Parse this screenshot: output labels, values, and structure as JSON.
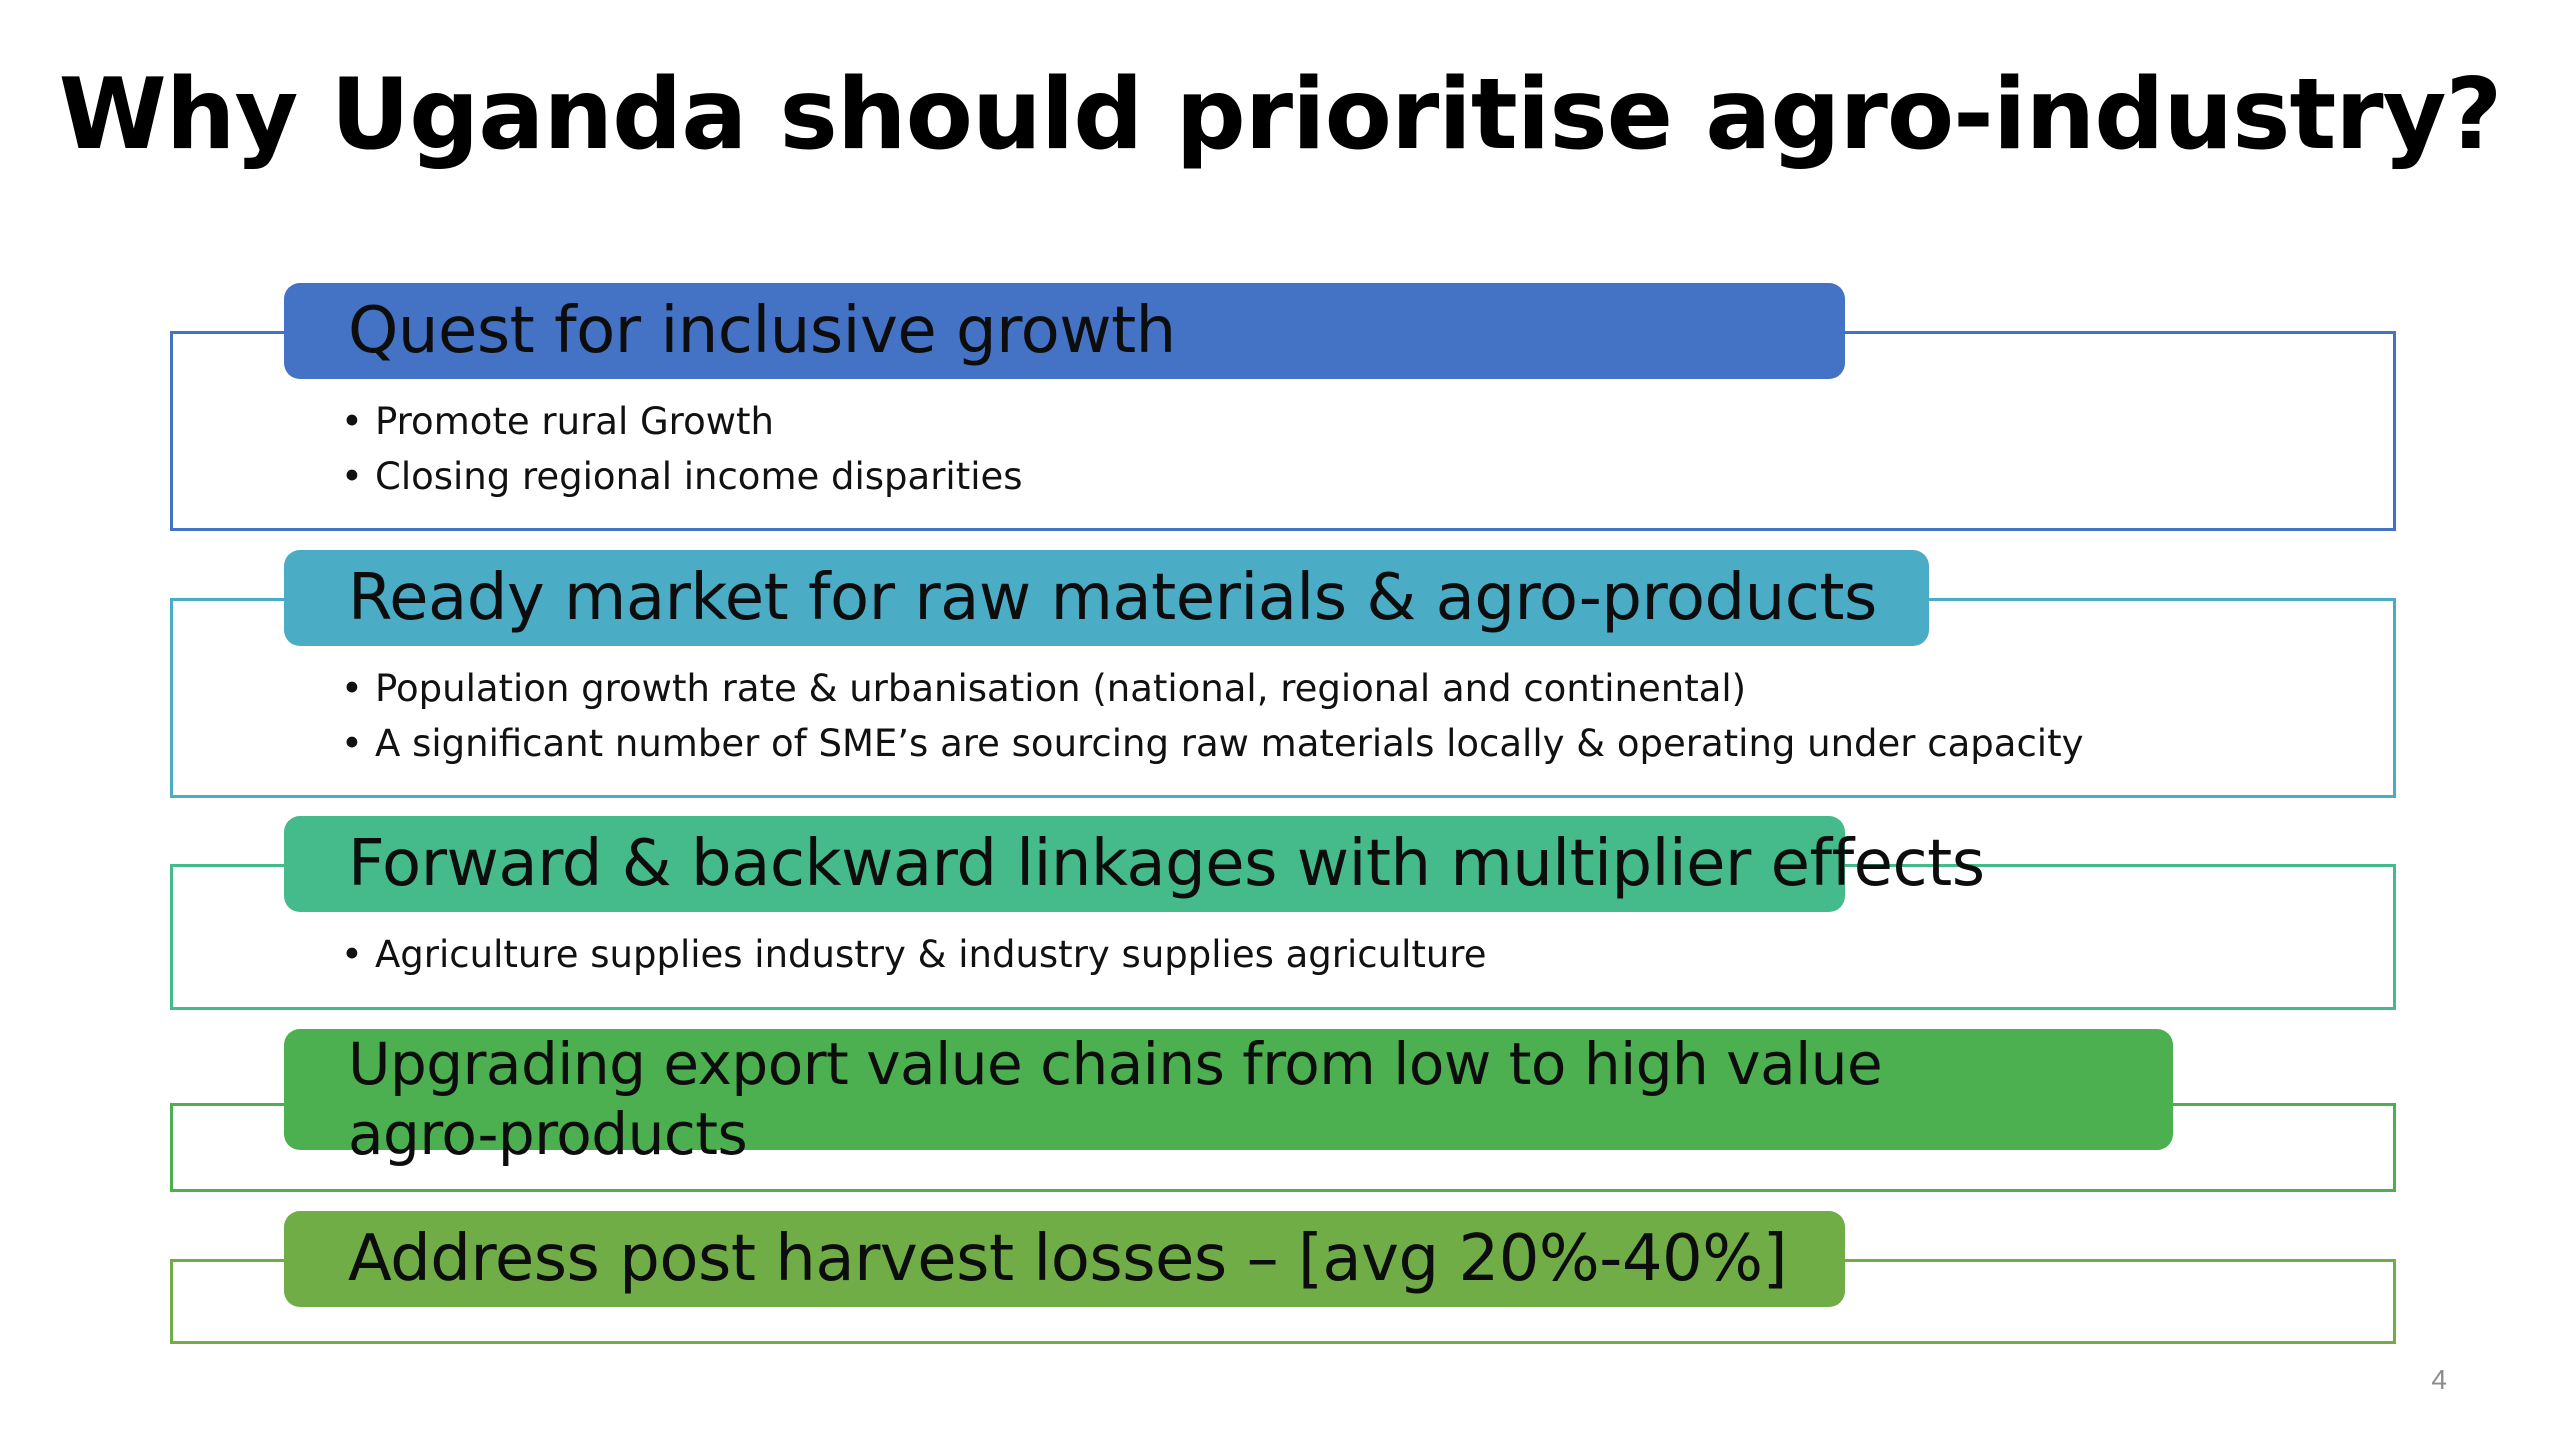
{
  "slide": {
    "title": "Why Uganda should prioritise agro-industry?",
    "page_number": "4"
  },
  "sections": [
    {
      "heading": "Quest for inclusive growth",
      "color": "#4472C4",
      "bullets": [
        "Promote rural Growth",
        "Closing regional income disparities"
      ]
    },
    {
      "heading": "Ready market for raw materials & agro-products",
      "color": "#4BACC6",
      "bullets": [
        "Population growth rate & urbanisation (national, regional and continental)",
        "A significant number of SME’s are sourcing raw materials locally & operating under capacity"
      ]
    },
    {
      "heading": "Forward & backward linkages with multiplier effects",
      "color": "#45BB8C",
      "bullets": [
        "Agriculture supplies industry & industry supplies agriculture"
      ]
    },
    {
      "heading": "Upgrading export value chains from low to high value agro-products",
      "color": "#4CAF50",
      "bullets": []
    },
    {
      "heading": "Address post harvest losses – [avg 20%-40%]",
      "color": "#70AD47",
      "bullets": []
    }
  ],
  "bullet_glyph": "•"
}
